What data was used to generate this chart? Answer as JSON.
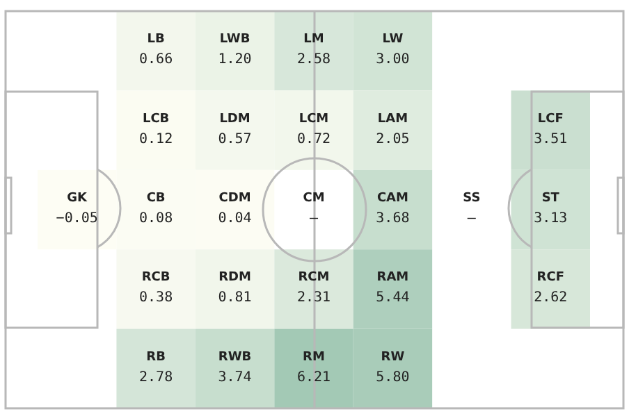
{
  "chart_data": {
    "type": "other",
    "categories": [
      "GK",
      "LB",
      "LCB",
      "CB",
      "RCB",
      "RB",
      "LWB",
      "LDM",
      "CDM",
      "RDM",
      "RWB",
      "LM",
      "LCM",
      "CM",
      "RCM",
      "RM",
      "LW",
      "LAM",
      "CAM",
      "RAM",
      "RW",
      "SS",
      "LCF",
      "ST",
      "RCF"
    ],
    "values": [
      -0.05,
      0.66,
      0.12,
      0.08,
      0.38,
      2.78,
      1.2,
      0.57,
      0.04,
      0.81,
      3.74,
      2.58,
      0.72,
      null,
      2.31,
      6.21,
      3.0,
      2.05,
      3.68,
      5.44,
      5.8,
      null,
      3.51,
      3.13,
      2.62
    ],
    "value_labels": [
      "−0.05",
      "0.66",
      "0.12",
      "0.08",
      "0.38",
      "2.78",
      "1.20",
      "0.57",
      "0.04",
      "0.81",
      "3.74",
      "2.58",
      "0.72",
      "–",
      "2.31",
      "6.21",
      "3.00",
      "2.05",
      "3.68",
      "5.44",
      "5.80",
      "–",
      "3.51",
      "3.13",
      "2.62"
    ]
  }
}
